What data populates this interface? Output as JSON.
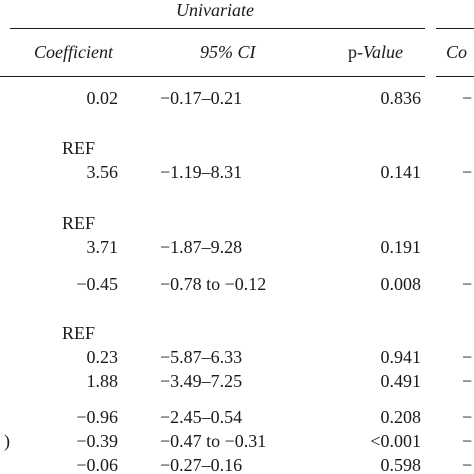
{
  "header": {
    "group": "Univariate",
    "columns": {
      "coefficient": "Coefficient",
      "ci": "95% CI",
      "p_prefix": "p-",
      "p_italic": "Value",
      "next": "Co"
    }
  },
  "rows": [
    {
      "coefficient": "0.02",
      "ci": "−0.17–0.21",
      "p": "0.836",
      "next": "−"
    },
    {
      "coefficient": "REF"
    },
    {
      "coefficient": "3.56",
      "ci": "−1.19–8.31",
      "p": "0.141",
      "next": "−"
    },
    {
      "coefficient": "REF"
    },
    {
      "coefficient": "3.71",
      "ci": "−1.87–9.28",
      "p": "0.191"
    },
    {
      "coefficient": "−0.45",
      "ci": "−0.78 to −0.12",
      "p": "0.008",
      "next": "−"
    },
    {
      "coefficient": "REF"
    },
    {
      "coefficient": "0.23",
      "ci": "−5.87–6.33",
      "p": "0.941",
      "next": "−"
    },
    {
      "coefficient": "1.88",
      "ci": "−3.49–7.25",
      "p": "0.491",
      "next": "−"
    },
    {
      "coefficient": "−0.96",
      "ci": "−2.45–0.54",
      "p": "0.208",
      "next": "−"
    },
    {
      "label": ")",
      "coefficient": "−0.39",
      "ci": "−0.47 to −0.31",
      "p": "<0.001",
      "next": "−"
    },
    {
      "coefficient": "−0.06",
      "ci": "−0.27–0.16",
      "p": "0.598",
      "next": "−"
    }
  ]
}
